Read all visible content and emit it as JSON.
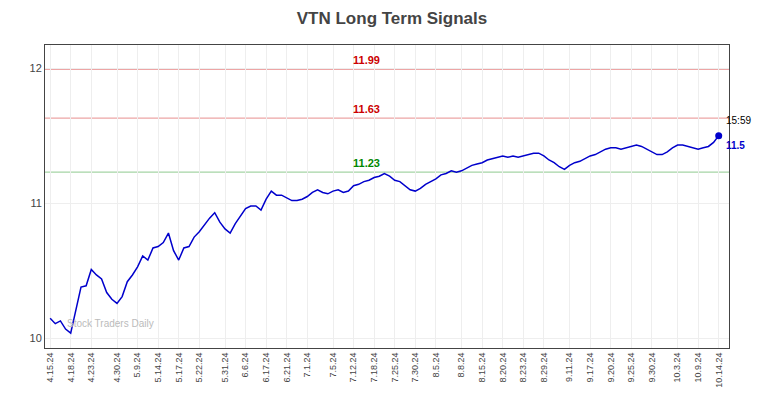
{
  "chart_data": {
    "type": "line",
    "title": "VTN Long Term Signals",
    "categories": [
      "4.15.24",
      null,
      null,
      null,
      "4.18.24",
      null,
      null,
      null,
      "4.23.24",
      null,
      null,
      null,
      null,
      "4.30.24",
      null,
      null,
      null,
      "5.9.24",
      null,
      null,
      null,
      "5.14.24",
      null,
      null,
      null,
      "5.17.24",
      null,
      null,
      null,
      "5.22.24",
      null,
      null,
      null,
      null,
      "5.31.24",
      null,
      null,
      null,
      "6.6.24",
      null,
      null,
      null,
      "6.17.24",
      null,
      null,
      null,
      "6.21.24",
      null,
      null,
      null,
      "7.1.24",
      null,
      null,
      null,
      null,
      "7.5.24",
      null,
      null,
      null,
      "7.12.24",
      null,
      null,
      null,
      "7.18.24",
      null,
      null,
      null,
      "7.25.24",
      null,
      null,
      null,
      "7.30.24",
      null,
      null,
      null,
      "8.5.24",
      null,
      null,
      null,
      null,
      "8.8.24",
      null,
      null,
      null,
      "8.15.24",
      null,
      null,
      null,
      "8.20.24",
      null,
      null,
      null,
      "8.23.24",
      null,
      null,
      null,
      "8.29.24",
      null,
      null,
      null,
      null,
      "9.11.24",
      null,
      null,
      null,
      "9.17.24",
      null,
      null,
      null,
      "9.20.24",
      null,
      null,
      null,
      "9.25.24",
      null,
      null,
      null,
      "9.30.24",
      null,
      null,
      null,
      null,
      "10.3.24",
      null,
      null,
      null,
      "10.9.24",
      null,
      null,
      null,
      "10.14.24"
    ],
    "values": [
      10.15,
      10.11,
      10.13,
      10.07,
      10.04,
      10.2,
      10.38,
      10.39,
      10.51,
      10.47,
      10.44,
      10.34,
      10.29,
      10.26,
      10.31,
      10.42,
      10.47,
      10.53,
      10.61,
      10.58,
      10.67,
      10.68,
      10.71,
      10.78,
      10.65,
      10.58,
      10.67,
      10.68,
      10.75,
      10.79,
      10.84,
      10.89,
      10.93,
      10.86,
      10.81,
      10.78,
      10.85,
      10.91,
      10.96,
      10.98,
      10.98,
      10.95,
      11.03,
      11.09,
      11.06,
      11.06,
      11.04,
      11.02,
      11.02,
      11.03,
      11.05,
      11.08,
      11.1,
      11.08,
      11.07,
      11.09,
      11.1,
      11.08,
      11.09,
      11.13,
      11.14,
      11.16,
      11.17,
      11.19,
      11.2,
      11.22,
      11.2,
      11.17,
      11.16,
      11.13,
      11.1,
      11.09,
      11.11,
      11.14,
      11.16,
      11.18,
      11.21,
      11.22,
      11.24,
      11.23,
      11.24,
      11.26,
      11.28,
      11.29,
      11.3,
      11.32,
      11.33,
      11.34,
      11.35,
      11.34,
      11.35,
      11.34,
      11.35,
      11.36,
      11.37,
      11.37,
      11.35,
      11.32,
      11.3,
      11.27,
      11.25,
      11.28,
      11.3,
      11.31,
      11.33,
      11.35,
      11.36,
      11.38,
      11.4,
      11.41,
      11.41,
      11.4,
      11.41,
      11.42,
      11.43,
      11.42,
      11.4,
      11.38,
      11.36,
      11.36,
      11.38,
      11.41,
      11.43,
      11.43,
      11.42,
      11.41,
      11.4,
      11.41,
      11.42,
      11.45,
      11.5
    ],
    "value_labels": [
      null,
      null,
      null,
      null,
      null,
      null,
      null,
      null,
      null,
      null,
      null,
      null,
      null,
      null,
      null,
      null,
      null,
      null,
      null,
      null,
      null,
      null,
      null,
      null,
      null,
      null,
      null,
      null,
      null,
      null,
      null,
      null,
      null,
      null,
      null,
      null,
      null,
      null,
      null,
      null,
      null,
      null,
      null,
      null,
      null,
      null,
      null,
      null,
      null,
      null,
      null,
      null,
      null,
      null,
      null,
      null,
      null,
      null,
      null,
      null,
      null,
      null,
      null,
      null,
      null,
      null,
      null,
      null,
      null,
      null,
      null,
      null,
      null,
      null,
      null,
      null,
      null,
      null,
      null,
      null,
      null,
      null,
      null,
      null,
      null,
      null,
      null,
      null,
      null,
      null,
      null,
      null,
      null,
      null,
      null,
      null,
      null,
      null,
      null,
      null,
      null,
      null,
      null,
      null,
      null,
      null,
      null,
      null,
      null,
      null,
      null,
      null,
      null,
      null,
      null,
      null,
      null,
      null,
      null,
      null,
      null,
      null,
      null,
      null,
      null,
      null,
      null,
      null,
      null,
      null,
      "11.5"
    ],
    "color": "#0000cc",
    "ylim": [
      9.93,
      12.17
    ],
    "yticks": [
      10,
      11,
      12
    ],
    "grid": true,
    "reference_lines": [
      {
        "value": 11.99,
        "label": "11.99",
        "color": "#cc0000"
      },
      {
        "value": 11.63,
        "label": "11.63",
        "color": "#cc0000"
      },
      {
        "value": 11.23,
        "label": "11.23",
        "color": "#008800"
      }
    ],
    "annotations": [
      {
        "text": "15:59",
        "x": 130,
        "y": 11.5,
        "color": "#000000"
      },
      {
        "text": "Stock Traders Daily",
        "x": 2,
        "y": 10.0,
        "color": "#bbbbbb"
      }
    ]
  }
}
